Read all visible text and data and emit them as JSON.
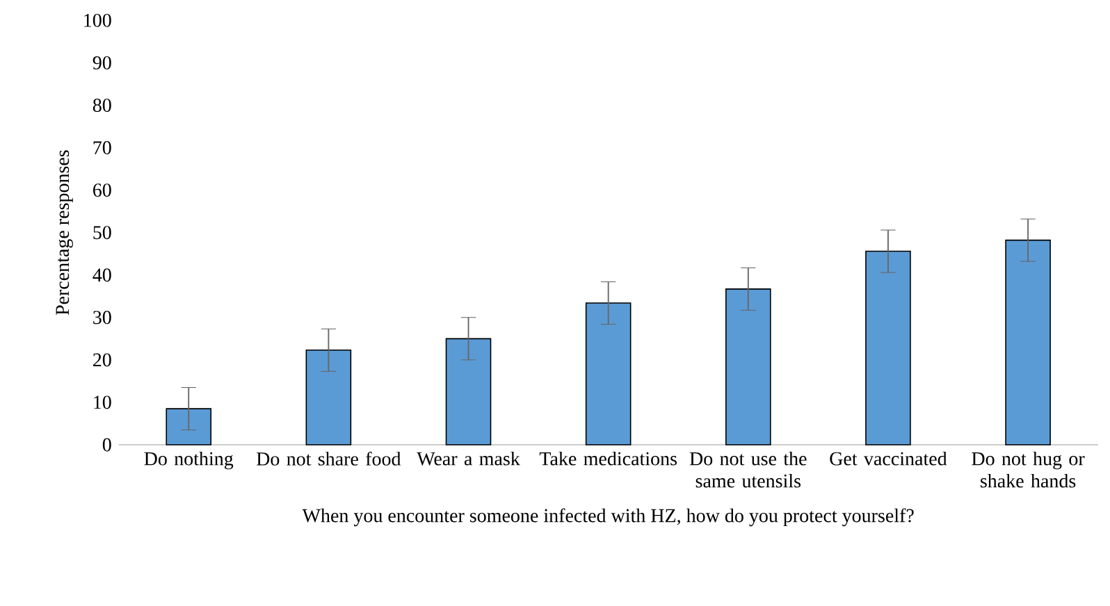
{
  "chart_data": {
    "type": "bar",
    "xlabel": "When you encounter someone infected with HZ, how do you protect yourself?",
    "ylabel": "Percentage responses",
    "categories": [
      "Do nothing",
      "Do not share food",
      "Wear a mask",
      "Take medications",
      "Do not use the same utensils",
      "Get vaccinated",
      "Do not hug or shake hands"
    ],
    "values": [
      8.5,
      22.3,
      25,
      33.4,
      36.7,
      45.6,
      48.2
    ],
    "errors": [
      5,
      5,
      5,
      5,
      5,
      5,
      5
    ],
    "color": "#5b9bd5",
    "ylim": [
      0,
      100
    ],
    "yticks": [
      0,
      10,
      20,
      30,
      40,
      50,
      60,
      70,
      80,
      90,
      100
    ],
    "grid": false
  }
}
